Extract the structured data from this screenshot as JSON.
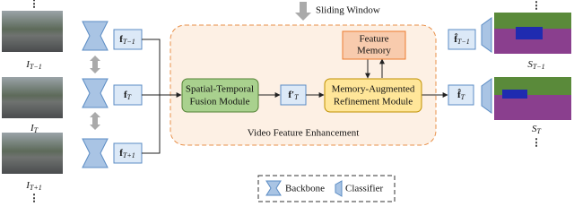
{
  "header": {
    "sliding_window": "Sliding Window"
  },
  "frames": [
    {
      "base": "I",
      "sub": "T−1"
    },
    {
      "base": "I",
      "sub": "T"
    },
    {
      "base": "I",
      "sub": "T+1"
    }
  ],
  "features": [
    {
      "base": "f",
      "sub": "T−1"
    },
    {
      "base": "f",
      "sub": "T"
    },
    {
      "base": "f",
      "sub": "T+1"
    }
  ],
  "fused_feature": {
    "base": "f′",
    "sub": "T"
  },
  "refined_features": [
    {
      "base": "f̂",
      "sub": "T−1"
    },
    {
      "base": "f̂",
      "sub": "T"
    }
  ],
  "outputs": [
    {
      "base": "S",
      "sub": "T−1"
    },
    {
      "base": "S",
      "sub": "T"
    }
  ],
  "modules": {
    "fusion": [
      "Spatial-Temporal",
      "Fusion Module"
    ],
    "memory": [
      "Feature",
      "Memory"
    ],
    "refinement": [
      "Memory-Augmented",
      "Refinement Module"
    ],
    "enhancement": "Video Feature Enhancement"
  },
  "legend": {
    "backbone": "Backbone",
    "classifier": "Classifier"
  },
  "ellipsis": "⋮"
}
